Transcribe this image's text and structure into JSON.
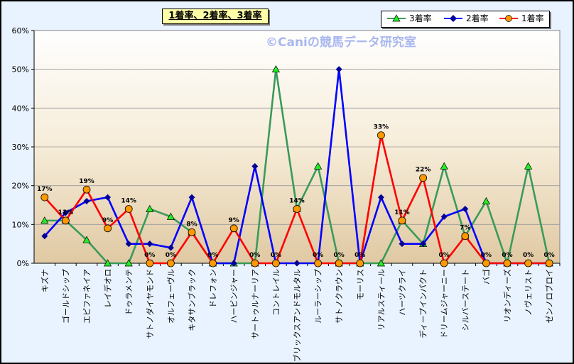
{
  "chart_data": {
    "type": "line",
    "title": "1着率、2着率、3着率",
    "watermark": "©Caniの競馬データ研究室",
    "categories": [
      "キズナ",
      "ゴールドシップ",
      "エピファネイア",
      "レイデオロ",
      "ドゥラメンテ",
      "サトノダイヤモンド",
      "オルフェーヴル",
      "キタサンブラック",
      "ドレフォン",
      "ハービンジャー",
      "サートゥルナーリア",
      "コントレイル",
      "ブリックスアンドモルタル",
      "ルーラーシップ",
      "サトノクラウン",
      "モーリス",
      "リアルスティール",
      "ハーツクライ",
      "ディープインパクト",
      "ドリームジャーニー",
      "シルバーステート",
      "バゴ",
      "リオンディーズ",
      "ノヴェリスト",
      "ゼンノロブロイ"
    ],
    "ylim": [
      0,
      60
    ],
    "yticks": [
      "0%",
      "10%",
      "20%",
      "30%",
      "40%",
      "50%",
      "60%"
    ],
    "grid": true,
    "legend_position": "top-right",
    "series": [
      {
        "name": "3着率",
        "color": "#3a9a5a",
        "marker": "triangle",
        "marker_fill": "#22ee22",
        "values": [
          11,
          11,
          6,
          0,
          0,
          14,
          12,
          8,
          0,
          0,
          0,
          50,
          14,
          25,
          0,
          0,
          0,
          11,
          5,
          25,
          7,
          16,
          0,
          25,
          0
        ]
      },
      {
        "name": "2着率",
        "color": "#0000ff",
        "marker": "diamond",
        "marker_fill": "#000099",
        "values": [
          7,
          13,
          16,
          17,
          5,
          5,
          4,
          17,
          0,
          0,
          25,
          0,
          0,
          0,
          50,
          0,
          17,
          5,
          5,
          12,
          14,
          0,
          0,
          0,
          0
        ]
      },
      {
        "name": "1着率",
        "color": "#ff0000",
        "marker": "circle",
        "marker_fill": "#ff9900",
        "values": [
          17,
          11,
          19,
          9,
          14,
          0,
          0,
          8,
          0,
          9,
          0,
          0,
          14,
          0,
          0,
          0,
          33,
          11,
          22,
          0,
          7,
          0,
          0,
          0,
          0
        ],
        "labels": [
          "17%",
          "11%",
          "19%",
          "9%",
          "14%",
          "0%",
          "0%",
          "8%",
          "0%",
          "9%",
          "0%",
          "0%",
          "14%",
          "0%",
          "0%",
          "0%",
          "33%",
          "11%",
          "22%",
          "0%",
          "7%",
          "0%",
          "0%",
          "0%",
          "0%"
        ]
      }
    ]
  }
}
